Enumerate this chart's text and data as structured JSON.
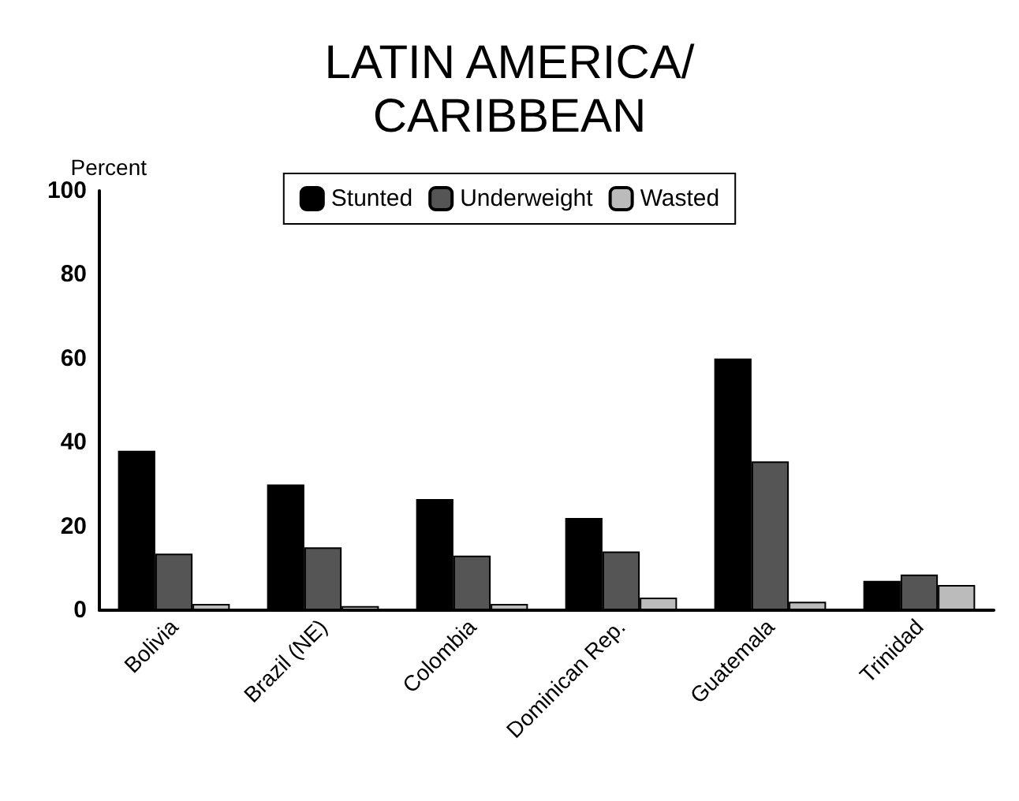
{
  "chart_data": {
    "type": "bar",
    "title": "LATIN AMERICA/\nCARIBBEAN",
    "ylabel": "Percent",
    "categories": [
      "Bolivia",
      "Brazil (NE)",
      "Colombia",
      "Dominican Rep.",
      "Guatemala",
      "Trinidad"
    ],
    "series": [
      {
        "name": "Stunted",
        "color": "#000000",
        "values": [
          38,
          30,
          26.5,
          22,
          60,
          7
        ]
      },
      {
        "name": "Underweight",
        "color": "#555555",
        "values": [
          13.5,
          15,
          13,
          14,
          35.5,
          8.5
        ]
      },
      {
        "name": "Wasted",
        "color": "#bbbbbb",
        "values": [
          1.5,
          1,
          1.5,
          3,
          2,
          6
        ]
      }
    ],
    "ylim": [
      0,
      100
    ],
    "yticks": [
      0,
      20,
      40,
      60,
      80,
      100
    ],
    "grid": false,
    "legend": "top"
  }
}
